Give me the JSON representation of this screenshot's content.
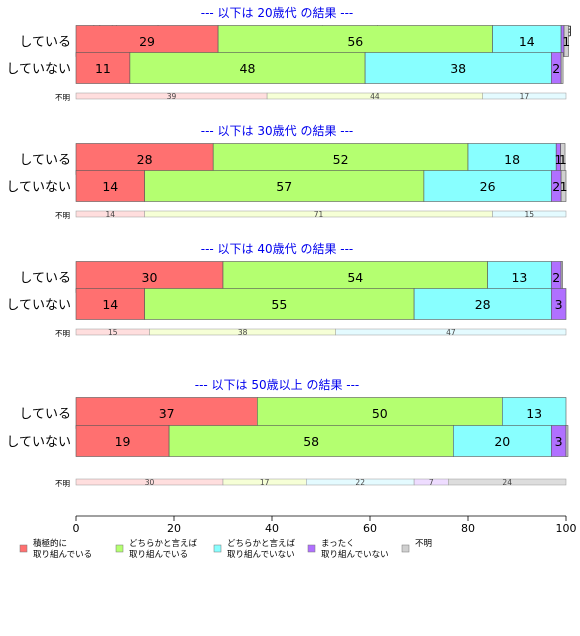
{
  "chart_data": {
    "type": "bar",
    "orientation": "horizontal",
    "stacked": true,
    "xlim": [
      0,
      100
    ],
    "x_ticks": [
      0,
      20,
      40,
      60,
      80,
      100
    ],
    "colors": [
      "#ff7070",
      "#b4ff70",
      "#88ffff",
      "#b070ff",
      "#d0d0d0"
    ],
    "column_headers": [
      "積極的に取り組んでい..",
      "どちらかと言えば取り組んでいる",
      "どちらかと..",
      "不明"
    ],
    "unknown_label": "不明",
    "legend": {
      "placement": "bottom-left",
      "items": [
        {
          "line1": "積極的に",
          "line2": "取り組んでいる"
        },
        {
          "line1": "どちらかと言えば",
          "line2": "取り組んでいる"
        },
        {
          "line1": "どちらかと言えば",
          "line2": "取り組んでいない"
        },
        {
          "line1": "まったく",
          "line2": "取り組んでいない"
        },
        {
          "line1": "不明",
          "line2": ""
        }
      ]
    },
    "panels": [
      {
        "title": "--- 以下は 20歳代 の結果 ---",
        "rows": [
          {
            "label": "している",
            "values": [
              29,
              56,
              14,
              0.6,
              0.9
            ],
            "value_labels": [
              "29",
              "56",
              "14",
              "",
              "1"
            ]
          },
          {
            "label": "していない",
            "values": [
              11,
              48,
              38,
              2,
              0.4
            ],
            "value_labels": [
              "11",
              "48",
              "38",
              "2",
              ""
            ]
          }
        ],
        "unknown": {
          "values": [
            39,
            44,
            17
          ],
          "labels": [
            "39",
            "44",
            "17"
          ]
        }
      },
      {
        "title": "--- 以下は 30歳代 の結果 ---",
        "rows": [
          {
            "label": "している",
            "values": [
              28,
              52,
              18,
              0.9,
              0.9
            ],
            "value_labels": [
              "28",
              "52",
              "18",
              "1",
              "1"
            ]
          },
          {
            "label": "していない",
            "values": [
              14,
              57,
              26,
              2,
              1
            ],
            "value_labels": [
              "14",
              "57",
              "26",
              "2",
              "1"
            ]
          }
        ],
        "unknown": {
          "values": [
            14,
            71,
            15
          ],
          "labels": [
            "14",
            "71",
            "15"
          ]
        }
      },
      {
        "title": "--- 以下は 40歳代 の結果 ---",
        "rows": [
          {
            "label": "している",
            "values": [
              30,
              54,
              13,
              2,
              0.3
            ],
            "value_labels": [
              "30",
              "54",
              "13",
              "2",
              ""
            ]
          },
          {
            "label": "していない",
            "values": [
              14,
              55,
              28,
              3,
              0
            ],
            "value_labels": [
              "14",
              "55",
              "28",
              "3",
              ""
            ]
          }
        ],
        "unknown": {
          "values": [
            15,
            38,
            47
          ],
          "labels": [
            "15",
            "38",
            "47"
          ]
        }
      },
      {
        "title": "--- 以下は 50歳以上 の結果 ---",
        "rows": [
          {
            "label": "している",
            "values": [
              37,
              50,
              13,
              0,
              0
            ],
            "value_labels": [
              "37",
              "50",
              "13",
              "",
              ""
            ]
          },
          {
            "label": "していない",
            "values": [
              19,
              58,
              20,
              3,
              0.4
            ],
            "value_labels": [
              "19",
              "58",
              "20",
              "3",
              ""
            ]
          }
        ],
        "unknown": {
          "values": [
            30,
            17,
            22,
            7,
            24
          ],
          "labels": [
            "30",
            "17",
            "22",
            "7",
            "24"
          ]
        }
      }
    ]
  }
}
